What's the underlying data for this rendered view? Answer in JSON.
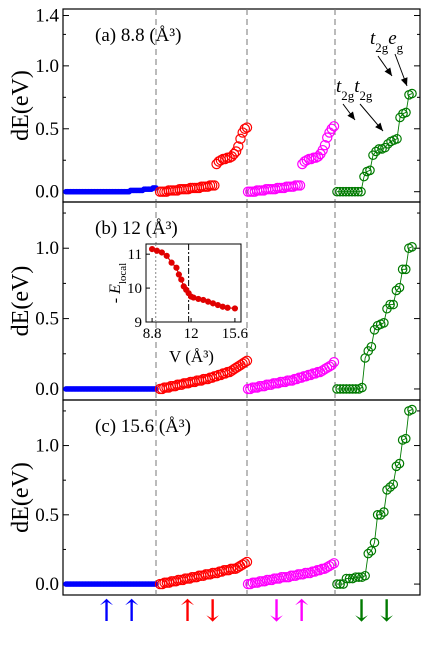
{
  "chart_data": {
    "type": "scatter",
    "ylabel": "dE(eV)",
    "spin_channels": [
      {
        "label": "↑↑",
        "color": "#0000ff"
      },
      {
        "label": "↑↓",
        "color": "#ff0000"
      },
      {
        "label": "↓↑",
        "color": "#ff00ff"
      },
      {
        "label": "↓↓",
        "color": "#007a00"
      }
    ],
    "panels": [
      {
        "tag": "(a)",
        "volume": "8.8",
        "unit": "(Å³)",
        "ylim": [
          -0.05,
          1.42
        ],
        "yticks": [
          "0.0",
          "0.5",
          "1.0",
          "1.4"
        ],
        "annotations": [
          {
            "text": "t2gt2g",
            "main1": "t",
            "sub1": "2g",
            "main2": "t",
            "sub2": "2g"
          },
          {
            "text": "t2geg",
            "main1": "t",
            "sub1": "2g",
            "main2": "e",
            "sub2": "g"
          }
        ],
        "series": [
          {
            "values": [
              0.0,
              0.0,
              0.0,
              0.0,
              0.0,
              0.0,
              0.0,
              0.0,
              0.0,
              0.0,
              0.0,
              0.0,
              0.0,
              0.0,
              0.0,
              0.0,
              0.0,
              0.0,
              0.0,
              0.0,
              0.0,
              0.0,
              0.0,
              0.0,
              0.0,
              0.0,
              0.0,
              0.0,
              0.0,
              0.0,
              0.0,
              0.0,
              0.0,
              0.0,
              0.0,
              0.0,
              0.0,
              0.0,
              0.0,
              0.0,
              0.0,
              0.0,
              0.0,
              0.01,
              0.01,
              0.01,
              0.01,
              0.01,
              0.01,
              0.01,
              0.01,
              0.01,
              0.02,
              0.02,
              0.02,
              0.02,
              0.02,
              0.02,
              0.03,
              0.03,
              0.03
            ]
          },
          {
            "values": [
              0.0,
              0.0,
              0.0,
              0.0,
              0.01,
              0.01,
              0.01,
              0.01,
              0.01,
              0.02,
              0.02,
              0.02,
              0.02,
              0.02,
              0.03,
              0.03,
              0.03,
              0.03,
              0.03,
              0.04,
              0.04,
              0.04,
              0.04,
              0.05,
              0.05,
              0.05,
              0.22,
              0.24,
              0.25,
              0.26,
              0.26,
              0.27,
              0.27,
              0.28,
              0.3,
              0.32,
              0.36,
              0.42,
              0.47,
              0.5,
              0.51
            ]
          },
          {
            "values": [
              0.0,
              0.0,
              0.0,
              0.0,
              0.01,
              0.01,
              0.01,
              0.01,
              0.02,
              0.02,
              0.02,
              0.02,
              0.02,
              0.03,
              0.03,
              0.03,
              0.03,
              0.04,
              0.04,
              0.04,
              0.04,
              0.05,
              0.05,
              0.05,
              0.22,
              0.24,
              0.25,
              0.26,
              0.26,
              0.27,
              0.27,
              0.28,
              0.3,
              0.33,
              0.37,
              0.43,
              0.47,
              0.5,
              0.52
            ]
          },
          {
            "values": [
              0.0,
              0.0,
              0.0,
              0.0,
              0.0,
              0.0,
              0.0,
              0.0,
              0.0,
              0.12,
              0.16,
              0.17,
              0.29,
              0.32,
              0.34,
              0.34,
              0.35,
              0.38,
              0.4,
              0.41,
              0.42,
              0.59,
              0.62,
              0.63,
              0.77,
              0.78
            ]
          }
        ]
      },
      {
        "tag": "(b)",
        "volume": "12",
        "unit": "(Å³)",
        "ylim": [
          -0.05,
          1.3
        ],
        "yticks": [
          "0.0",
          "0.5",
          "1.0"
        ],
        "inset": {
          "ylabel": "- E",
          "ylabel_sub": "local",
          "xlabel": "V (Å³)",
          "xticks": [
            "8.8",
            "12",
            "15.6"
          ],
          "yticks": [
            "9",
            "10",
            "11"
          ],
          "xlim": [
            8.3,
            16.1
          ],
          "ylim": [
            9.0,
            11.3
          ],
          "marker_lines": [
            9.1,
            11.8
          ],
          "x": [
            8.8,
            9.2,
            9.6,
            10.0,
            10.4,
            10.8,
            11.0,
            11.2,
            11.4,
            11.6,
            11.8,
            12.0,
            12.2,
            12.6,
            13.0,
            13.4,
            13.8,
            14.2,
            14.6,
            15.0,
            15.6
          ],
          "y": [
            11.15,
            11.1,
            11.05,
            10.95,
            10.75,
            10.6,
            10.4,
            10.25,
            10.05,
            9.95,
            9.85,
            9.75,
            9.72,
            9.68,
            9.65,
            9.6,
            9.55,
            9.5,
            9.45,
            9.42,
            9.4
          ]
        },
        "series": [
          {
            "values": [
              0.0,
              0.0,
              0.0,
              0.0,
              0.0,
              0.0,
              0.0,
              0.0,
              0.0,
              0.0,
              0.0,
              0.0,
              0.0,
              0.0,
              0.0,
              0.0,
              0.0,
              0.0,
              0.0,
              0.0,
              0.0,
              0.0,
              0.0,
              0.0,
              0.0,
              0.0,
              0.0,
              0.0,
              0.0,
              0.0,
              0.0,
              0.0,
              0.0,
              0.0,
              0.0,
              0.0,
              0.0,
              0.0,
              0.0,
              0.0,
              0.0,
              0.0,
              0.0,
              0.0,
              0.0,
              0.0,
              0.0,
              0.0,
              0.0,
              0.0,
              0.0,
              0.0,
              0.0,
              0.0,
              0.0,
              0.0,
              0.0,
              0.0,
              0.0,
              0.0,
              0.0
            ]
          },
          {
            "values": [
              0.0,
              0.0,
              0.01,
              0.01,
              0.01,
              0.02,
              0.02,
              0.02,
              0.03,
              0.03,
              0.03,
              0.04,
              0.04,
              0.04,
              0.05,
              0.05,
              0.05,
              0.06,
              0.06,
              0.06,
              0.07,
              0.07,
              0.07,
              0.08,
              0.08,
              0.09,
              0.09,
              0.1,
              0.1,
              0.11,
              0.11,
              0.12,
              0.12,
              0.13,
              0.14,
              0.15,
              0.16,
              0.17,
              0.18,
              0.19,
              0.2
            ]
          },
          {
            "values": [
              0.0,
              0.0,
              0.01,
              0.01,
              0.01,
              0.02,
              0.02,
              0.02,
              0.03,
              0.03,
              0.03,
              0.04,
              0.04,
              0.04,
              0.05,
              0.05,
              0.05,
              0.06,
              0.06,
              0.06,
              0.07,
              0.07,
              0.08,
              0.08,
              0.09,
              0.09,
              0.1,
              0.1,
              0.11,
              0.11,
              0.12,
              0.12,
              0.13,
              0.14,
              0.15,
              0.16,
              0.17,
              0.19
            ]
          },
          {
            "values": [
              0.0,
              0.0,
              0.0,
              0.0,
              0.0,
              0.0,
              0.0,
              0.0,
              0.01,
              0.22,
              0.27,
              0.3,
              0.42,
              0.45,
              0.46,
              0.47,
              0.57,
              0.6,
              0.6,
              0.7,
              0.72,
              0.85,
              0.85,
              1.0,
              1.01
            ]
          }
        ]
      },
      {
        "tag": "(c)",
        "volume": "15.6",
        "unit": "(Å³)",
        "ylim": [
          -0.05,
          1.3
        ],
        "yticks": [
          "0.0",
          "0.5",
          "1.0"
        ],
        "series": [
          {
            "values": [
              0.0,
              0.0,
              0.0,
              0.0,
              0.0,
              0.0,
              0.0,
              0.0,
              0.0,
              0.0,
              0.0,
              0.0,
              0.0,
              0.0,
              0.0,
              0.0,
              0.0,
              0.0,
              0.0,
              0.0,
              0.0,
              0.0,
              0.0,
              0.0,
              0.0,
              0.0,
              0.0,
              0.0,
              0.0,
              0.0,
              0.0,
              0.0,
              0.0,
              0.0,
              0.0,
              0.0,
              0.0,
              0.0,
              0.0,
              0.0,
              0.0,
              0.0,
              0.0,
              0.0,
              0.0,
              0.0,
              0.0,
              0.0,
              0.0,
              0.0,
              0.0,
              0.0,
              0.0,
              0.0,
              0.0,
              0.0,
              0.0,
              0.0,
              0.0,
              0.0,
              0.0
            ]
          },
          {
            "values": [
              0.0,
              0.0,
              0.01,
              0.01,
              0.01,
              0.02,
              0.02,
              0.02,
              0.03,
              0.03,
              0.03,
              0.04,
              0.04,
              0.04,
              0.05,
              0.05,
              0.05,
              0.06,
              0.06,
              0.06,
              0.07,
              0.07,
              0.07,
              0.08,
              0.08,
              0.08,
              0.09,
              0.09,
              0.1,
              0.1,
              0.1,
              0.11,
              0.11,
              0.11,
              0.12,
              0.13,
              0.14,
              0.15,
              0.16
            ]
          },
          {
            "values": [
              0.0,
              0.0,
              0.01,
              0.01,
              0.01,
              0.02,
              0.02,
              0.02,
              0.03,
              0.03,
              0.03,
              0.04,
              0.04,
              0.04,
              0.05,
              0.05,
              0.05,
              0.05,
              0.06,
              0.06,
              0.06,
              0.07,
              0.07,
              0.07,
              0.08,
              0.08,
              0.08,
              0.09,
              0.09,
              0.1,
              0.1,
              0.11,
              0.11,
              0.12,
              0.13,
              0.14,
              0.15
            ]
          },
          {
            "values": [
              0.0,
              0.0,
              0.0,
              0.04,
              0.04,
              0.04,
              0.05,
              0.05,
              0.05,
              0.06,
              0.22,
              0.24,
              0.3,
              0.5,
              0.5,
              0.52,
              0.68,
              0.7,
              0.72,
              0.85,
              0.87,
              1.04,
              1.05,
              1.25,
              1.26
            ]
          }
        ]
      }
    ]
  }
}
